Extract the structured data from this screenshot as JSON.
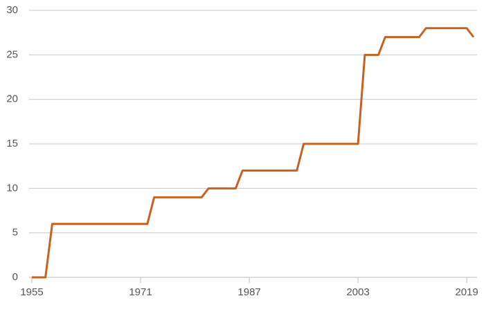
{
  "chart_data": {
    "type": "line",
    "x": [
      1955,
      1956,
      1957,
      1958,
      1959,
      1960,
      1961,
      1962,
      1963,
      1964,
      1965,
      1966,
      1967,
      1968,
      1969,
      1970,
      1971,
      1972,
      1973,
      1974,
      1975,
      1976,
      1977,
      1978,
      1979,
      1980,
      1981,
      1982,
      1983,
      1984,
      1985,
      1986,
      1987,
      1988,
      1989,
      1990,
      1991,
      1992,
      1993,
      1994,
      1995,
      1996,
      1997,
      1998,
      1999,
      2000,
      2001,
      2002,
      2003,
      2004,
      2005,
      2006,
      2007,
      2008,
      2009,
      2010,
      2011,
      2012,
      2013,
      2014,
      2015,
      2016,
      2017,
      2018,
      2019,
      2020
    ],
    "series": [
      {
        "color": "#c8601e",
        "values": [
          0,
          0,
          0,
          6,
          6,
          6,
          6,
          6,
          6,
          6,
          6,
          6,
          6,
          6,
          6,
          6,
          6,
          6,
          9,
          9,
          9,
          9,
          9,
          9,
          9,
          9,
          10,
          10,
          10,
          10,
          10,
          12,
          12,
          12,
          12,
          12,
          12,
          12,
          12,
          12,
          15,
          15,
          15,
          15,
          15,
          15,
          15,
          15,
          15,
          25,
          25,
          25,
          27,
          27,
          27,
          27,
          27,
          27,
          28,
          28,
          28,
          28,
          28,
          28,
          28,
          27
        ]
      }
    ],
    "xlim": [
      1955,
      2020
    ],
    "xticks": [
      1955,
      1971,
      1987,
      2003,
      2019
    ],
    "ylim": [
      0,
      30
    ],
    "yticks": [
      0,
      5,
      10,
      15,
      20,
      25,
      30
    ],
    "grid": true
  }
}
